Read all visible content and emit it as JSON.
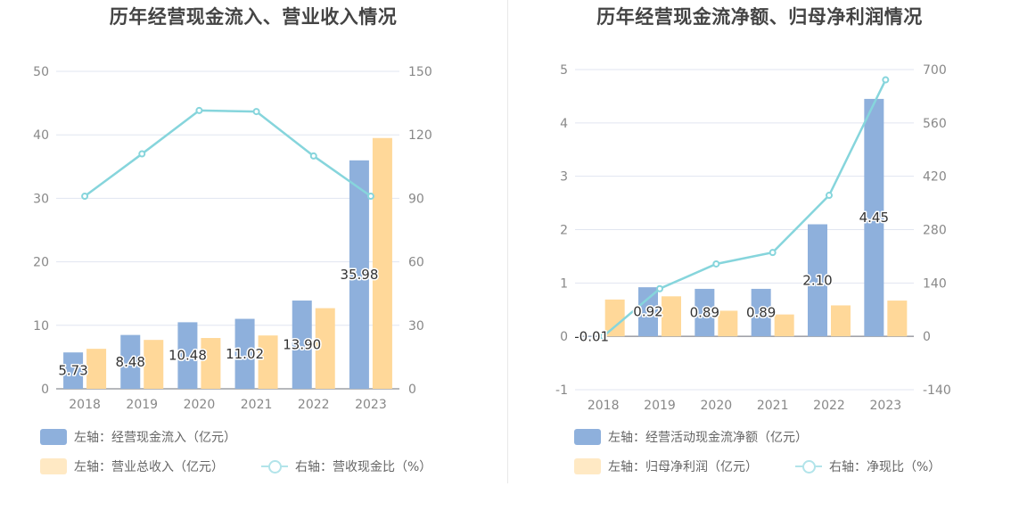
{
  "colors": {
    "bar_primary": "#8eb0dc",
    "bar_secondary": "#ffd899",
    "line": "#86d5dc",
    "axis_text": "#888888",
    "grid": "#e1e5f0"
  },
  "chart_data": [
    {
      "type": "bar+line",
      "title": "历年经营现金流入、营业收入情况",
      "categories": [
        "2018",
        "2019",
        "2020",
        "2021",
        "2022",
        "2023"
      ],
      "left_axis": {
        "ylim": [
          0,
          50
        ],
        "ticks": [
          "0",
          "10",
          "20",
          "30",
          "40",
          "50"
        ]
      },
      "right_axis": {
        "ylim": [
          0,
          150
        ],
        "ticks": [
          "0",
          "30",
          "60",
          "90",
          "120",
          "150"
        ]
      },
      "series": [
        {
          "name": "左轴：经营现金流入（亿元）",
          "type": "bar",
          "axis": "left",
          "values": [
            5.73,
            8.48,
            10.48,
            11.02,
            13.9,
            35.98
          ],
          "labels": [
            "5.73",
            "8.48",
            "10.48",
            "11.02",
            "13.90",
            "35.98"
          ]
        },
        {
          "name": "左轴：营业总收入（亿元）",
          "type": "bar",
          "axis": "left",
          "values": [
            6.3,
            7.7,
            8.0,
            8.4,
            12.7,
            39.5
          ]
        },
        {
          "name": "右轴：营收现金比（%）",
          "type": "line",
          "axis": "right",
          "values": [
            91,
            111,
            131.5,
            131,
            110,
            91
          ]
        }
      ],
      "grid": true,
      "legend_position": "bottom"
    },
    {
      "type": "bar+line",
      "title": "历年经营现金流净额、归母净利润情况",
      "categories": [
        "2018",
        "2019",
        "2020",
        "2021",
        "2022",
        "2023"
      ],
      "left_axis": {
        "ylim": [
          -1,
          5
        ],
        "ticks": [
          "-1",
          "0",
          "1",
          "2",
          "3",
          "4",
          "5"
        ]
      },
      "right_axis": {
        "ylim": [
          -140,
          700
        ],
        "ticks": [
          "-140",
          "0",
          "140",
          "280",
          "420",
          "560",
          "700"
        ]
      },
      "series": [
        {
          "name": "左轴：经营活动现金流净额（亿元）",
          "type": "bar",
          "axis": "left",
          "values": [
            -0.01,
            0.92,
            0.89,
            0.89,
            2.1,
            4.45
          ],
          "labels": [
            "-0.01",
            "0.92",
            "0.89",
            "0.89",
            "2.10",
            "4.45"
          ]
        },
        {
          "name": "左轴：归母净利润（亿元）",
          "type": "bar",
          "axis": "left",
          "values": [
            0.69,
            0.75,
            0.48,
            0.41,
            0.58,
            0.67
          ]
        },
        {
          "name": "右轴：净现比（%）",
          "type": "line",
          "axis": "right",
          "values": [
            0,
            125,
            190,
            220,
            370,
            673
          ]
        }
      ],
      "grid": true,
      "legend_position": "bottom"
    }
  ]
}
